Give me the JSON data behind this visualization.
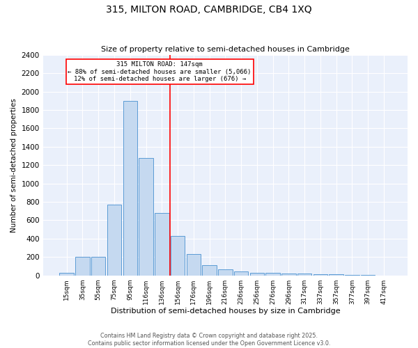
{
  "title": "315, MILTON ROAD, CAMBRIDGE, CB4 1XQ",
  "subtitle": "Size of property relative to semi-detached houses in Cambridge",
  "xlabel": "Distribution of semi-detached houses by size in Cambridge",
  "ylabel": "Number of semi-detached properties",
  "categories": [
    "15sqm",
    "35sqm",
    "55sqm",
    "75sqm",
    "95sqm",
    "116sqm",
    "136sqm",
    "156sqm",
    "176sqm",
    "196sqm",
    "216sqm",
    "236sqm",
    "256sqm",
    "276sqm",
    "296sqm",
    "317sqm",
    "337sqm",
    "357sqm",
    "377sqm",
    "397sqm",
    "417sqm"
  ],
  "values": [
    28,
    200,
    200,
    770,
    1900,
    1275,
    680,
    430,
    230,
    110,
    65,
    45,
    30,
    25,
    20,
    20,
    15,
    10,
    5,
    2,
    1
  ],
  "bar_color": "#c5d9f0",
  "bar_edge_color": "#5b9bd5",
  "vline_index": 7,
  "annotation_text_line1": "315 MILTON ROAD: 147sqm",
  "annotation_text_line2": "← 88% of semi-detached houses are smaller (5,066)",
  "annotation_text_line3": "12% of semi-detached houses are larger (676) →",
  "vline_color": "red",
  "box_color": "red",
  "background_color": "#eaf0fb",
  "grid_color": "#ffffff",
  "footer_line1": "Contains HM Land Registry data © Crown copyright and database right 2025.",
  "footer_line2": "Contains public sector information licensed under the Open Government Licence v3.0.",
  "ylim": [
    0,
    2400
  ],
  "yticks": [
    0,
    200,
    400,
    600,
    800,
    1000,
    1200,
    1400,
    1600,
    1800,
    2000,
    2200,
    2400
  ]
}
